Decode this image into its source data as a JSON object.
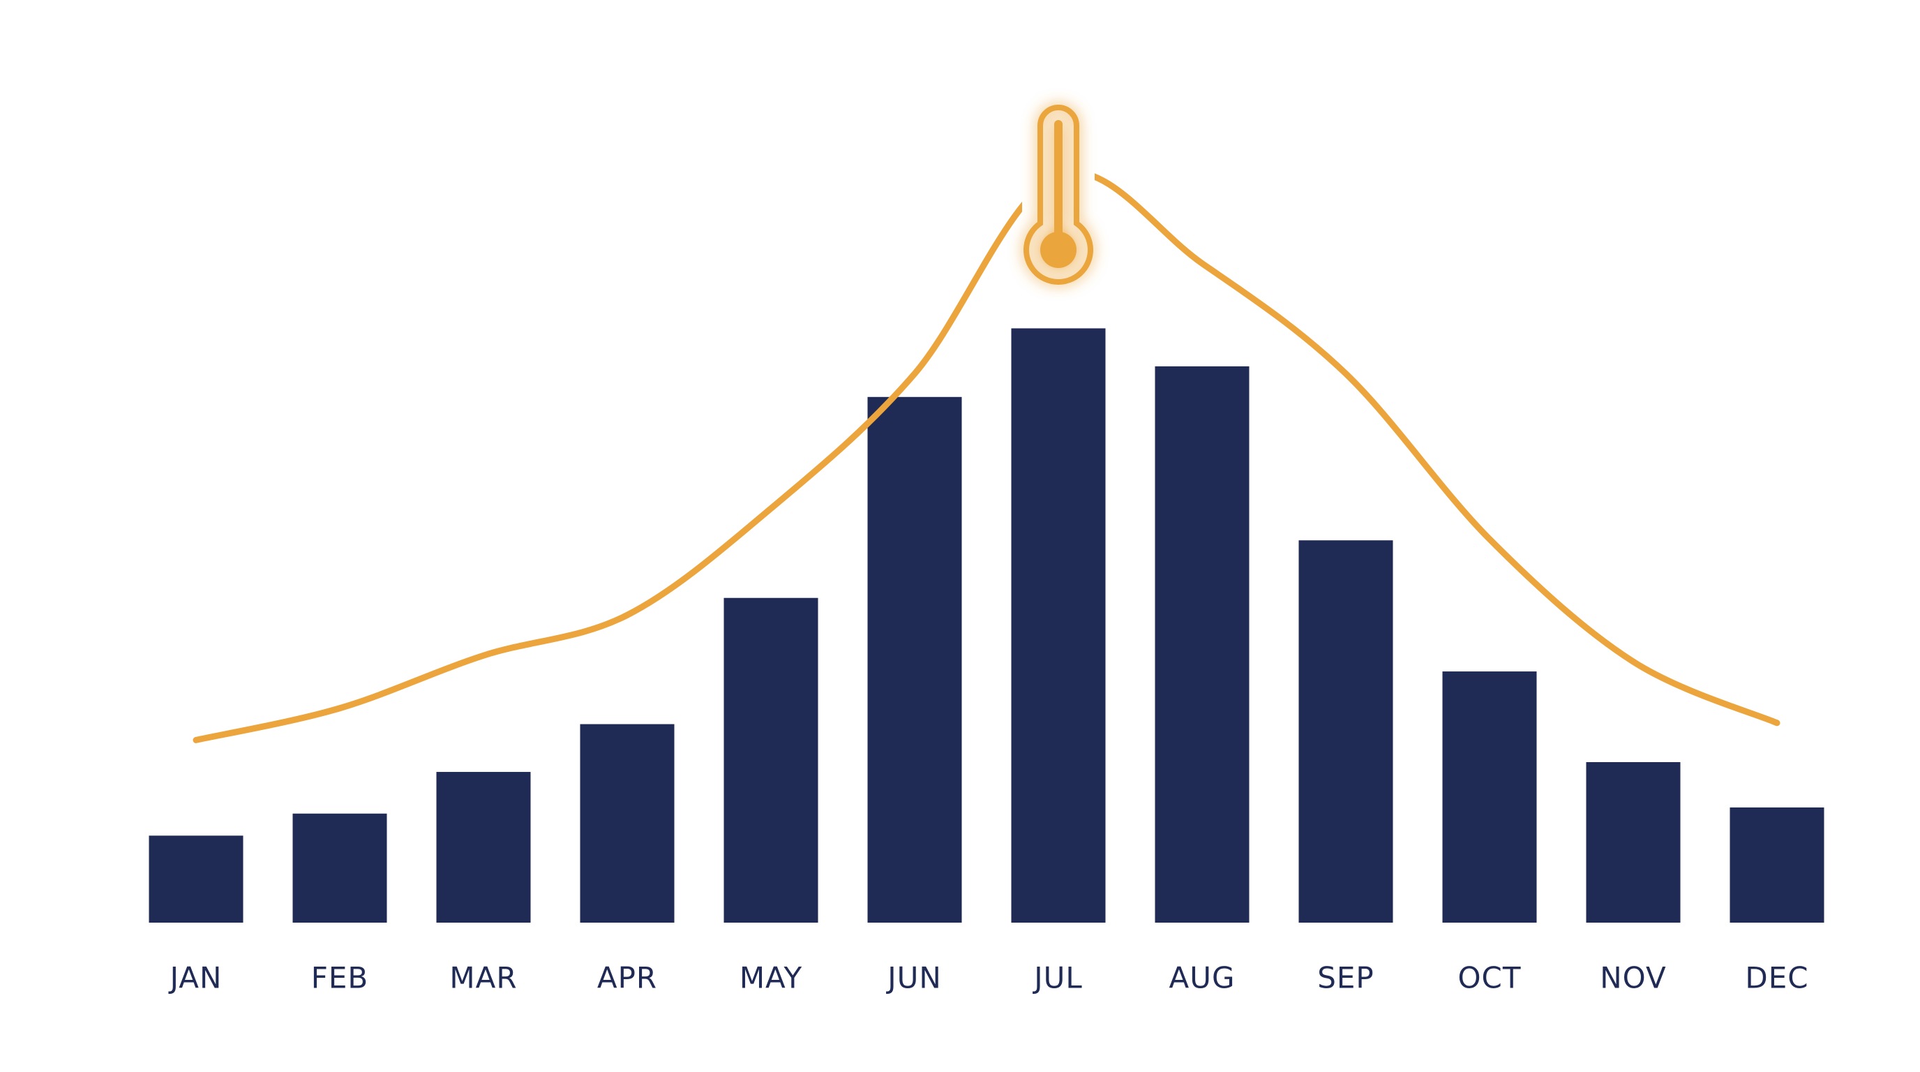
{
  "chart_data": {
    "type": "bar",
    "categories": [
      "JAN",
      "FEB",
      "MAR",
      "APR",
      "MAY",
      "JUN",
      "JUL",
      "AUG",
      "SEP",
      "OCT",
      "NOV",
      "DEC"
    ],
    "series": [
      {
        "type": "bar",
        "color": "#1f2a55",
        "values": [
          71,
          89,
          123,
          162,
          265,
          429,
          485,
          454,
          312,
          205,
          131,
          94
        ]
      },
      {
        "type": "line",
        "color": "#eba53c",
        "values": [
          149,
          175,
          218,
          251,
          338,
          448,
          610,
          538,
          448,
          313,
          213,
          163
        ]
      }
    ],
    "grid": false
  }
}
